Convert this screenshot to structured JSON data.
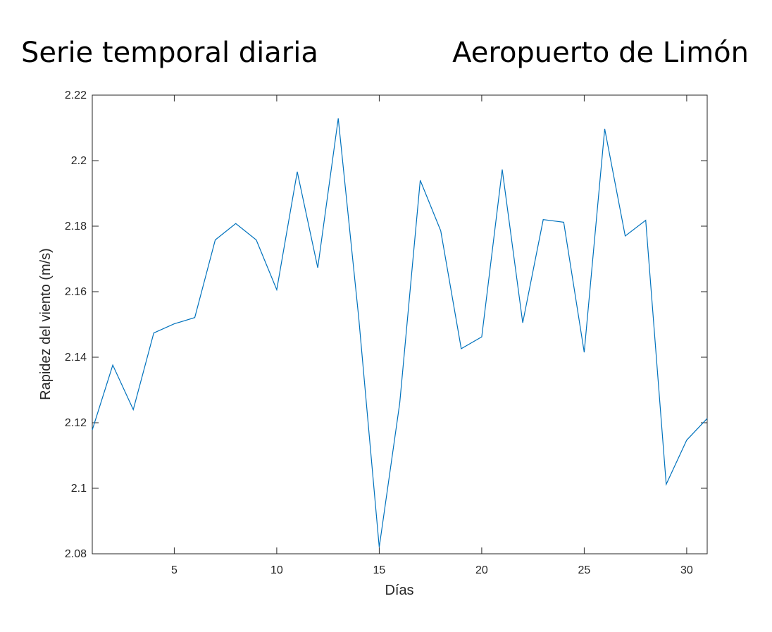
{
  "titles": {
    "left": "Serie temporal diaria",
    "right": "Aeropuerto de Limón"
  },
  "chart_data": {
    "type": "line",
    "title": "Serie temporal diaria",
    "subtitle": "Aeropuerto de Limón",
    "xlabel": "Días",
    "ylabel": "Rapidez del viento (m/s)",
    "xlim": [
      1,
      31
    ],
    "ylim": [
      2.08,
      2.22
    ],
    "xticks": [
      5,
      10,
      15,
      20,
      25,
      30
    ],
    "yticks": [
      2.08,
      2.1,
      2.12,
      2.14,
      2.16,
      2.18,
      2.2,
      2.22
    ],
    "ytick_labels": [
      "2.08",
      "2.1",
      "2.12",
      "2.14",
      "2.16",
      "2.18",
      "2.2",
      "2.22"
    ],
    "grid": false,
    "color": "#0072BD",
    "x": [
      1,
      2,
      3,
      4,
      5,
      6,
      7,
      8,
      9,
      10,
      11,
      12,
      13,
      14,
      15,
      16,
      17,
      18,
      19,
      20,
      21,
      22,
      23,
      24,
      25,
      26,
      27,
      28,
      29,
      30,
      31
    ],
    "y": [
      2.1178,
      2.1376,
      2.124,
      2.1474,
      2.1502,
      2.1521,
      2.1758,
      2.1808,
      2.1758,
      2.1606,
      2.1966,
      2.1673,
      2.2129,
      2.152,
      2.082,
      2.126,
      2.194,
      2.1786,
      2.1426,
      2.1462,
      2.1973,
      2.1505,
      2.182,
      2.1812,
      2.1415,
      2.2097,
      2.177,
      2.1818,
      2.1012,
      2.1147,
      2.1213
    ]
  }
}
